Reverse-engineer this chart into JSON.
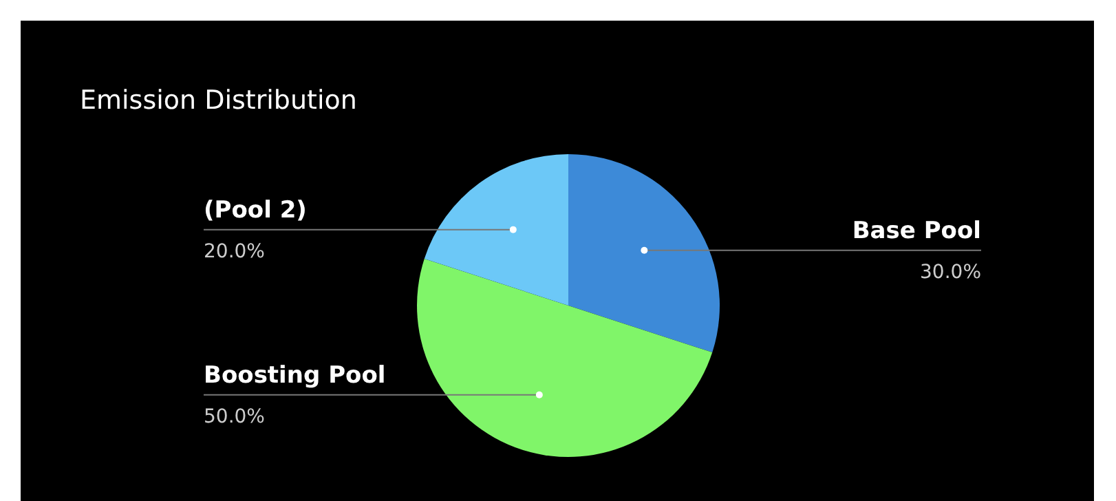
{
  "chart_data": {
    "type": "pie",
    "title": "Emission Distribution",
    "categories": [
      "Base Pool",
      "Boosting Pool",
      "(Pool 2)"
    ],
    "values": [
      30,
      50,
      20
    ],
    "colors": [
      "#3d8ad8",
      "#80f569",
      "#6cc8f7"
    ],
    "value_labels": [
      "30.0%",
      "50.0%",
      "20.0%"
    ],
    "legend": false
  }
}
